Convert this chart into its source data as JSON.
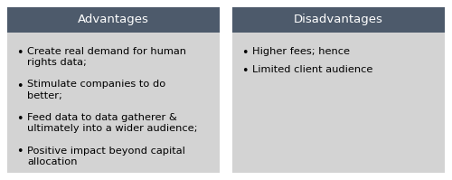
{
  "header_bg_color": "#4d5a6b",
  "body_bg_color": "#d3d3d3",
  "header_text_color": "#ffffff",
  "body_text_color": "#000000",
  "header_fontsize": 9.5,
  "body_fontsize": 8.2,
  "left_header": "Advantages",
  "right_header": "Disadvantages",
  "left_bullets": [
    "Create real demand for human\nrights data;",
    "Stimulate companies to do\nbetter;",
    "Feed data to data gatherer &\nultimately into a wider audience;",
    "Positive impact beyond capital\nallocation"
  ],
  "right_bullets": [
    "Higher fees; hence",
    "Limited client audience"
  ],
  "fig_bg_color": "#ffffff",
  "fig_width": 5.0,
  "fig_height": 1.99,
  "dpi": 100
}
